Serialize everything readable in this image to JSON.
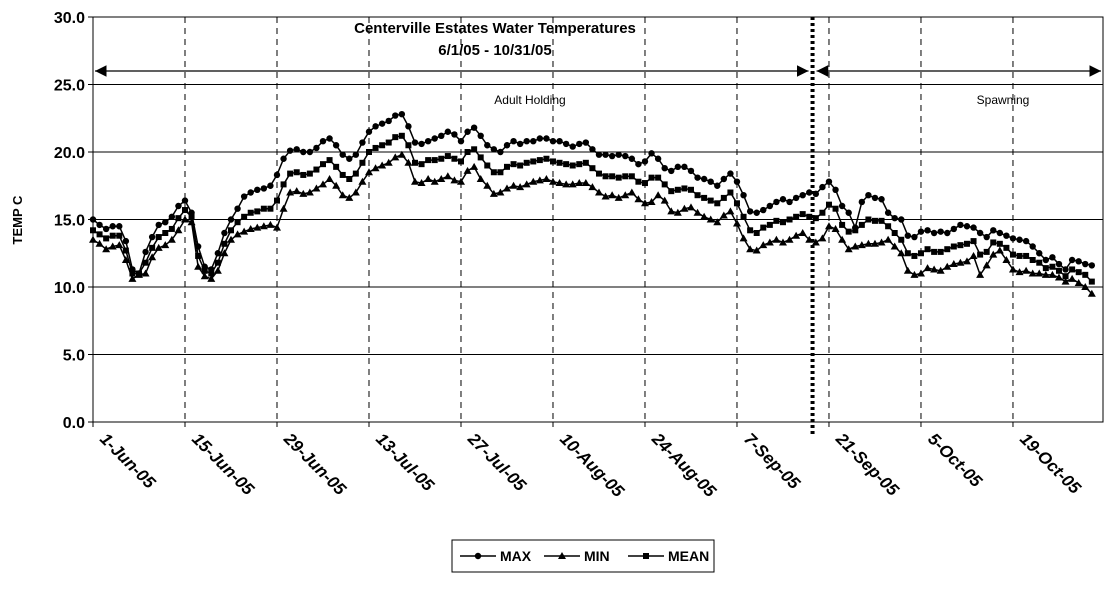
{
  "chart_data": {
    "type": "line",
    "title": "Centerville Estates  Water Temperatures",
    "subtitle": "6/1/05 - 10/31/05",
    "y_label": "TEMP C",
    "annotations": [
      "Adult Holding",
      "Spawning"
    ],
    "divider": 109.5,
    "categories": [
      "1-Jun-05",
      null,
      null,
      null,
      null,
      null,
      null,
      null,
      null,
      null,
      null,
      null,
      null,
      null,
      "15-Jun-05",
      null,
      null,
      null,
      null,
      null,
      null,
      null,
      null,
      null,
      null,
      null,
      null,
      null,
      "29-Jun-05",
      null,
      null,
      null,
      null,
      null,
      null,
      null,
      null,
      null,
      null,
      null,
      null,
      null,
      "13-Jul-05",
      null,
      null,
      null,
      null,
      null,
      null,
      null,
      null,
      null,
      null,
      null,
      null,
      null,
      "27-Jul-05",
      null,
      null,
      null,
      null,
      null,
      null,
      null,
      null,
      null,
      null,
      null,
      null,
      null,
      "10-Aug-05",
      null,
      null,
      null,
      null,
      null,
      null,
      null,
      null,
      null,
      null,
      null,
      null,
      null,
      "24-Aug-05",
      null,
      null,
      null,
      null,
      null,
      null,
      null,
      null,
      null,
      null,
      null,
      null,
      null,
      "7-Sep-05",
      null,
      null,
      null,
      null,
      null,
      null,
      null,
      null,
      null,
      null,
      null,
      null,
      null,
      "21-Sep-05",
      null,
      null,
      null,
      null,
      null,
      null,
      null,
      null,
      null,
      null,
      null,
      null,
      null,
      "5-Oct-05",
      null,
      null,
      null,
      null,
      null,
      null,
      null,
      null,
      null,
      null,
      null,
      null,
      null,
      "19-Oct-05",
      null,
      null,
      null,
      null,
      null,
      null,
      null,
      null,
      null,
      null,
      null,
      null
    ],
    "series": [
      {
        "name": "MAX",
        "marker": "circle",
        "color": "#000000",
        "values": [
          15.0,
          14.6,
          14.3,
          14.5,
          14.5,
          13.4,
          11.3,
          11.0,
          12.6,
          13.7,
          14.6,
          14.8,
          15.2,
          16.0,
          16.4,
          15.5,
          13.0,
          11.5,
          11.3,
          12.5,
          14.0,
          15.0,
          15.8,
          16.7,
          17.0,
          17.2,
          17.3,
          17.5,
          18.3,
          19.5,
          20.1,
          20.2,
          20.0,
          20.0,
          20.3,
          20.8,
          21.0,
          20.5,
          19.8,
          19.5,
          19.8,
          20.7,
          21.5,
          21.9,
          22.1,
          22.3,
          22.7,
          22.8,
          21.9,
          20.7,
          20.6,
          20.8,
          21.0,
          21.2,
          21.5,
          21.3,
          20.8,
          21.5,
          21.8,
          21.2,
          20.5,
          20.2,
          20.0,
          20.5,
          20.8,
          20.6,
          20.8,
          20.8,
          21.0,
          21.0,
          20.8,
          20.8,
          20.6,
          20.4,
          20.6,
          20.7,
          20.2,
          19.8,
          19.8,
          19.7,
          19.8,
          19.7,
          19.5,
          19.1,
          19.3,
          19.9,
          19.5,
          18.8,
          18.6,
          18.9,
          18.9,
          18.6,
          18.1,
          18.0,
          17.8,
          17.5,
          18.0,
          18.4,
          17.8,
          16.8,
          15.6,
          15.5,
          15.7,
          16.0,
          16.3,
          16.5,
          16.3,
          16.6,
          16.8,
          17.0,
          16.9,
          17.4,
          17.8,
          17.2,
          16.0,
          15.5,
          14.4,
          16.3,
          16.8,
          16.6,
          16.5,
          15.5,
          15.1,
          15.0,
          13.8,
          13.7,
          14.1,
          14.2,
          14.0,
          14.1,
          14.0,
          14.3,
          14.6,
          14.5,
          14.4,
          14.0,
          13.7,
          14.2,
          14.0,
          13.8,
          13.6,
          13.5,
          13.4,
          13.0,
          12.5,
          12.0,
          12.2,
          11.7,
          11.3,
          12.0,
          11.9,
          11.7,
          11.6
        ]
      },
      {
        "name": "MIN",
        "marker": "triangle",
        "color": "#000000",
        "values": [
          13.5,
          13.2,
          12.8,
          13.0,
          13.1,
          12.0,
          10.6,
          10.9,
          11.0,
          12.2,
          12.9,
          13.1,
          13.5,
          14.2,
          15.0,
          14.8,
          11.5,
          10.8,
          10.6,
          11.2,
          12.5,
          13.5,
          13.9,
          14.1,
          14.3,
          14.4,
          14.5,
          14.6,
          14.4,
          15.8,
          17.0,
          17.1,
          16.9,
          17.0,
          17.3,
          17.6,
          18.0,
          17.5,
          16.8,
          16.6,
          17.0,
          17.8,
          18.5,
          18.8,
          19.0,
          19.2,
          19.6,
          19.8,
          19.2,
          17.8,
          17.7,
          18.0,
          17.8,
          18.0,
          18.2,
          17.9,
          17.8,
          18.6,
          18.9,
          18.0,
          17.5,
          16.9,
          17.0,
          17.3,
          17.5,
          17.4,
          17.6,
          17.8,
          17.9,
          18.0,
          17.8,
          17.7,
          17.6,
          17.6,
          17.7,
          17.7,
          17.4,
          17.0,
          16.7,
          16.8,
          16.6,
          16.8,
          17.0,
          16.5,
          16.2,
          16.3,
          16.8,
          16.4,
          15.6,
          15.5,
          15.8,
          15.9,
          15.5,
          15.2,
          15.0,
          14.8,
          15.3,
          15.6,
          14.7,
          13.6,
          12.8,
          12.7,
          13.1,
          13.3,
          13.5,
          13.3,
          13.5,
          13.8,
          14.0,
          13.5,
          13.3,
          13.6,
          14.5,
          14.3,
          13.5,
          12.8,
          13.0,
          13.1,
          13.2,
          13.2,
          13.3,
          13.5,
          13.0,
          12.5,
          11.2,
          10.9,
          11.0,
          11.4,
          11.3,
          11.2,
          11.5,
          11.7,
          11.8,
          11.9,
          12.3,
          10.9,
          11.6,
          12.4,
          12.7,
          12.0,
          11.3,
          11.1,
          11.2,
          11.0,
          11.0,
          10.9,
          10.9,
          10.7,
          10.4,
          10.6,
          10.3,
          10.0,
          9.5
        ]
      },
      {
        "name": "MEAN",
        "marker": "square",
        "color": "#000000",
        "values": [
          14.2,
          13.9,
          13.6,
          13.8,
          13.8,
          12.7,
          11.0,
          11.0,
          11.8,
          12.9,
          13.7,
          14.0,
          14.3,
          15.1,
          15.7,
          15.2,
          12.3,
          11.2,
          11.0,
          11.8,
          13.2,
          14.2,
          14.8,
          15.2,
          15.5,
          15.6,
          15.8,
          15.8,
          16.4,
          17.6,
          18.4,
          18.5,
          18.3,
          18.4,
          18.7,
          19.1,
          19.4,
          18.9,
          18.3,
          18.0,
          18.4,
          19.2,
          20.0,
          20.3,
          20.5,
          20.7,
          21.1,
          21.2,
          20.5,
          19.2,
          19.1,
          19.4,
          19.4,
          19.5,
          19.7,
          19.5,
          19.3,
          20.0,
          20.2,
          19.6,
          19.0,
          18.5,
          18.5,
          18.9,
          19.1,
          19.0,
          19.2,
          19.3,
          19.4,
          19.5,
          19.3,
          19.2,
          19.1,
          19.0,
          19.1,
          19.2,
          18.8,
          18.4,
          18.2,
          18.2,
          18.1,
          18.2,
          18.2,
          17.8,
          17.7,
          18.1,
          18.1,
          17.6,
          17.1,
          17.2,
          17.3,
          17.2,
          16.8,
          16.6,
          16.4,
          16.2,
          16.6,
          17.0,
          16.2,
          15.2,
          14.2,
          14.0,
          14.4,
          14.6,
          14.9,
          14.8,
          15.0,
          15.2,
          15.4,
          15.2,
          15.1,
          15.5,
          16.1,
          15.8,
          14.6,
          14.1,
          14.2,
          14.6,
          15.0,
          14.9,
          14.9,
          14.5,
          14.0,
          13.5,
          12.5,
          12.3,
          12.5,
          12.8,
          12.6,
          12.6,
          12.8,
          13.0,
          13.1,
          13.2,
          13.4,
          12.4,
          12.6,
          13.3,
          13.2,
          12.9,
          12.4,
          12.3,
          12.3,
          12.0,
          11.8,
          11.4,
          11.5,
          11.2,
          10.8,
          11.3,
          11.1,
          10.9,
          10.4
        ]
      }
    ],
    "ylim": [
      0,
      30
    ],
    "yticks": [
      {
        "value": 0,
        "label": "0.0"
      },
      {
        "value": 5,
        "label": "5.0"
      },
      {
        "value": 10,
        "label": "10.0"
      },
      {
        "value": 15,
        "label": "15.0"
      },
      {
        "value": 20,
        "label": "20.0"
      },
      {
        "value": 25,
        "label": "25.0"
      },
      {
        "value": 30,
        "label": "30.0"
      }
    ],
    "grid": true,
    "legend": "bottom"
  }
}
